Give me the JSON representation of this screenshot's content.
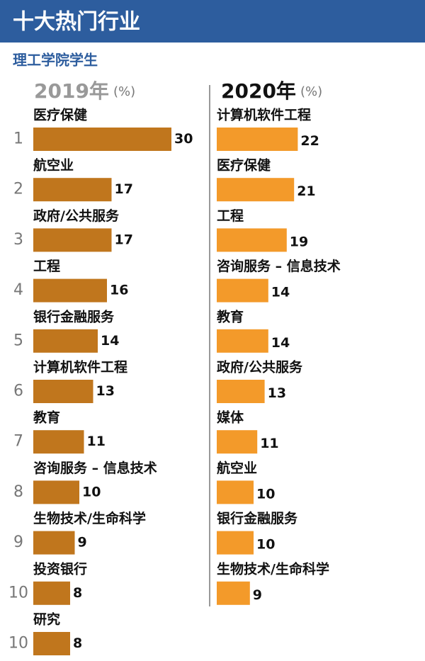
{
  "title": "十大热门行业",
  "subtitle": "理工学院学生",
  "chart_data": [
    {
      "type": "bar",
      "title": "2019年",
      "unit": "(%)",
      "color": "#c0761d",
      "ranks": [
        1,
        2,
        3,
        4,
        5,
        6,
        7,
        8,
        9,
        10,
        10
      ],
      "categories": [
        "医疗保健",
        "航空业",
        "政府/公共服务",
        "工程",
        "银行金融服务",
        "计算机软件工程",
        "教育",
        "咨询服务 – 信息技术",
        "生物技术/生命科学",
        "投资银行",
        "研究"
      ],
      "values": [
        30,
        17,
        17,
        16,
        14,
        13,
        11,
        10,
        9,
        8,
        8
      ]
    },
    {
      "type": "bar",
      "title": "2020年",
      "unit": "(%)",
      "color": "#f39a2a",
      "categories": [
        "计算机软件工程",
        "医疗保健",
        "工程",
        "咨询服务 – 信息技术",
        "教育",
        "政府/公共服务",
        "媒体",
        "航空业",
        "银行金融服务",
        "生物技术/生命科学"
      ],
      "values": [
        22,
        21,
        19,
        14,
        14,
        13,
        11,
        10,
        10,
        9
      ]
    }
  ]
}
